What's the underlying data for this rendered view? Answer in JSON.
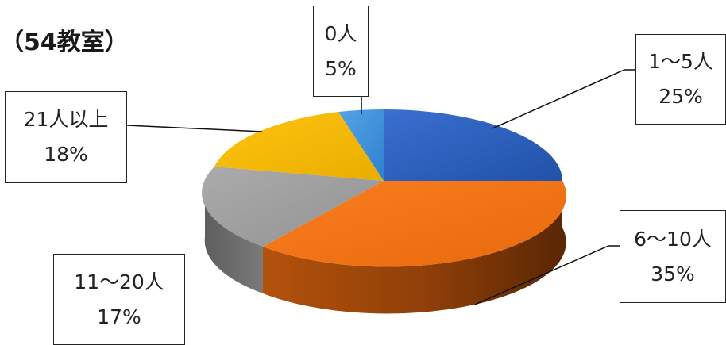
{
  "chart_data": {
    "type": "pie",
    "title": "（54教室）",
    "slices": [
      {
        "category": "1〜5人",
        "label": "25%",
        "value": 25,
        "color": "#2f62c4"
      },
      {
        "category": "6〜10人",
        "label": "35%",
        "value": 35,
        "color": "#f07318"
      },
      {
        "category": "11〜20人",
        "label": "17%",
        "value": 17,
        "color": "#9e9e9e"
      },
      {
        "category": "21人以上",
        "label": "18%",
        "value": 18,
        "color": "#f7b900"
      },
      {
        "category": "0人",
        "label": "5%",
        "value": 5,
        "color": "#3d8fdc"
      }
    ]
  }
}
